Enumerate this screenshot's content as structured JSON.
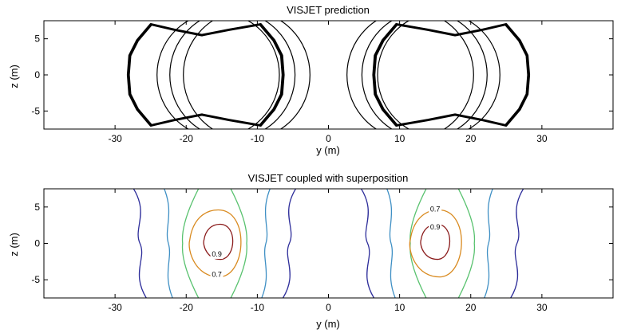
{
  "chart_data": [
    {
      "type": "line",
      "title": "VISJET prediction",
      "xlabel": "y (m)",
      "ylabel": "z (m)",
      "xlim": [
        -40,
        40
      ],
      "ylim": [
        -7.5,
        7.5
      ],
      "xticks": [
        -30,
        -20,
        -10,
        0,
        10,
        20,
        30
      ],
      "yticks": [
        5,
        0,
        -5
      ],
      "grid": false,
      "legend": "none",
      "line_color": "#000000",
      "outer_lobes": [
        {
          "y_center": -17.8,
          "y_extent": [
            -28,
            -6.5
          ],
          "z_extent": [
            -7.5,
            7.5
          ],
          "line_weight": "bold"
        },
        {
          "y_center": 17.8,
          "y_extent": [
            6.5,
            28
          ],
          "z_extent": [
            -7.5,
            7.5
          ],
          "line_weight": "bold"
        }
      ],
      "inner_circles": [
        {
          "y_center": -15.5,
          "z_center": 0,
          "radius": 8.6
        },
        {
          "y_center": -13.5,
          "z_center": 0,
          "radius": 8.8
        },
        {
          "y_center": -11.5,
          "z_center": 0,
          "radius": 8.9
        },
        {
          "y_center": 11.5,
          "z_center": 0,
          "radius": 8.9
        },
        {
          "y_center": 13.5,
          "z_center": 0,
          "radius": 8.8
        },
        {
          "y_center": 15.5,
          "z_center": 0,
          "radius": 8.6
        }
      ]
    },
    {
      "type": "contour",
      "title": "VISJET coupled with superposition",
      "xlabel": "y (m)",
      "ylabel": "z (m)",
      "xlim": [
        -40,
        40
      ],
      "ylim": [
        -7.5,
        7.5
      ],
      "xticks": [
        -30,
        -20,
        -10,
        0,
        10,
        20,
        30
      ],
      "yticks": [
        5,
        0,
        -5
      ],
      "grid": false,
      "contour_labels": [
        "0.9",
        "0.7",
        "0.7",
        "0.9"
      ],
      "plumes": [
        {
          "y_center": -15.5,
          "levels": [
            {
              "color": "#2d2d9a",
              "y_min": -26.5,
              "y_max": -5.5
            },
            {
              "color": "#3e8fc4",
              "y_min": -22.5,
              "y_max": -8.8
            },
            {
              "color": "#59c26f",
              "y_min": -20.5,
              "y_max": -11.5
            },
            {
              "color": "#d98a1f",
              "y_min": -19.5,
              "y_max": -11.5
            },
            {
              "color": "#8b1c1c",
              "y_min": -17.5,
              "y_max": -13.0
            }
          ]
        },
        {
          "y_center": 15.5,
          "levels": [
            {
              "color": "#2d2d9a",
              "y_min": 5.5,
              "y_max": 26.5
            },
            {
              "color": "#3e8fc4",
              "y_min": 8.8,
              "y_max": 22.5
            },
            {
              "color": "#59c26f",
              "y_min": 11.5,
              "y_max": 20.5
            },
            {
              "color": "#d98a1f",
              "y_min": 11.5,
              "y_max": 19.5
            },
            {
              "color": "#8b1c1c",
              "y_min": 13.0,
              "y_max": 17.5
            }
          ]
        }
      ]
    }
  ]
}
